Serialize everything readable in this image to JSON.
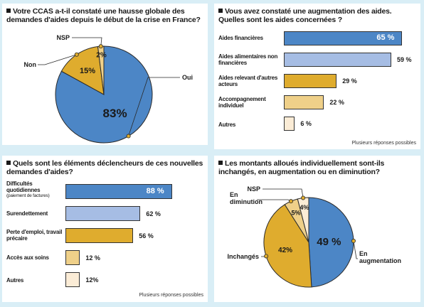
{
  "colors": {
    "background": "#d9eef6",
    "blue": "#4c86c6",
    "light_blue": "#a6bde4",
    "gold": "#dfac2e",
    "light_gold": "#efd089",
    "pale_gold": "#fbecd6"
  },
  "chart_data": [
    {
      "type": "pie",
      "title": "Votre CCAS a-t-il constaté une hausse globale des demandes d'aides depuis le début de la crise en France?",
      "slices": [
        {
          "label": "Oui",
          "value": 83,
          "display": "83%"
        },
        {
          "label": "Non",
          "value": 15,
          "display": "15%"
        },
        {
          "label": "NSP",
          "value": 2,
          "display": "2%"
        }
      ]
    },
    {
      "type": "bar",
      "title": "Vous avez constaté une augmentation des aides. Quelles sont les aides concernées ?",
      "note": "Plusieurs réponses possibles",
      "xlim": [
        0,
        100
      ],
      "bars": [
        {
          "label": "Aides financières",
          "value": 65,
          "display": "65 %"
        },
        {
          "label": "Aides alimentaires non financières",
          "value": 59,
          "display": "59 %"
        },
        {
          "label": "Aides relevant d'autres acteurs",
          "value": 29,
          "display": "29 %"
        },
        {
          "label": "Accompagnement individuel",
          "value": 22,
          "display": "22 %"
        },
        {
          "label": "Autres",
          "value": 6,
          "display": "6 %"
        }
      ]
    },
    {
      "type": "bar",
      "title": "Quels sont les éléments déclencheurs de ces nouvelles demandes d'aides?",
      "note": "Plusieurs réponses possibles",
      "xlim": [
        0,
        100
      ],
      "bars": [
        {
          "label": "Difficultés quotidiennes",
          "sublabel": "(paiement de factures)",
          "value": 88,
          "display": "88 %"
        },
        {
          "label": "Surendettement",
          "value": 62,
          "display": "62 %"
        },
        {
          "label": "Perte d'emploi, travail précaire",
          "value": 56,
          "display": "56 %"
        },
        {
          "label": "Accès aux soins",
          "value": 12,
          "display": "12 %"
        },
        {
          "label": "Autres",
          "value": 12,
          "display": "12%"
        }
      ]
    },
    {
      "type": "pie",
      "title": "Les montants alloués individuellement sont-ils inchangés, en augmentation ou en diminution?",
      "slices": [
        {
          "label": "En augmentation",
          "value": 49,
          "display": "49 %"
        },
        {
          "label": "Inchangés",
          "value": 42,
          "display": "42%"
        },
        {
          "label": "En diminution",
          "value": 5,
          "display": "5%"
        },
        {
          "label": "NSP",
          "value": 4,
          "display": "4%"
        }
      ]
    }
  ]
}
